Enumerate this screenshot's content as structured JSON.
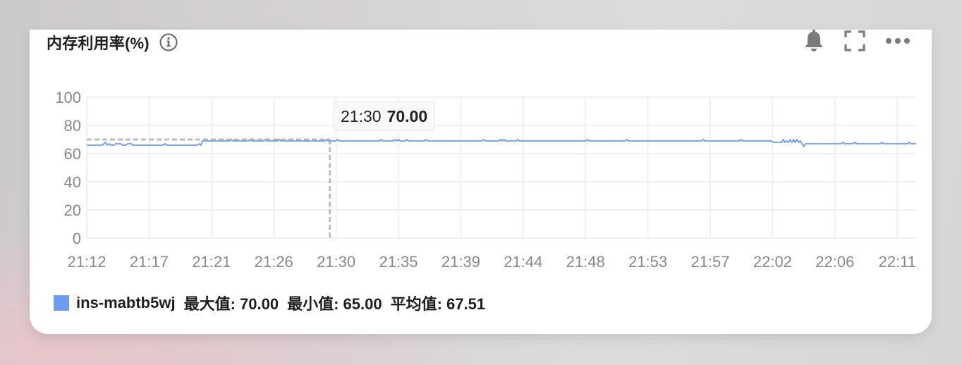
{
  "header": {
    "title": "内存利用率(%)",
    "info_icon": "info-icon",
    "tools": [
      "bell-icon",
      "fullscreen-icon",
      "more-icon"
    ]
  },
  "tooltip": {
    "time": "21:30",
    "value": "70.00"
  },
  "legend": {
    "series_name": "ins-mabtb5wj",
    "max_label": "最大值: 70.00",
    "min_label": "最小值: 65.00",
    "avg_label": "平均值: 67.51"
  },
  "colors": {
    "series": "#6c9cf2",
    "grid": "#ececec",
    "axis_text": "#888888",
    "crosshair": "#bdbdbd"
  },
  "chart_data": {
    "type": "line",
    "title": "内存利用率(%)",
    "xlabel": "",
    "ylabel": "",
    "ylim": [
      0,
      100
    ],
    "yticks": [
      0,
      20,
      40,
      60,
      80,
      100
    ],
    "x_tick_labels": [
      "21:12",
      "21:17",
      "21:21",
      "21:26",
      "21:30",
      "21:35",
      "21:39",
      "21:44",
      "21:48",
      "21:53",
      "21:57",
      "22:02",
      "22:06",
      "22:11"
    ],
    "grid": true,
    "legend_position": "bottom-left",
    "series": [
      {
        "name": "ins-mabtb5wj",
        "values": [
          66,
          66,
          66,
          66,
          66,
          66,
          66,
          66,
          66,
          66,
          67,
          68,
          66,
          67,
          66,
          66,
          66,
          67,
          67,
          67,
          67,
          66,
          66,
          66,
          67,
          67,
          67,
          66,
          66,
          66,
          66,
          66,
          66,
          66,
          66,
          66,
          66,
          66,
          66,
          66,
          66,
          66,
          66,
          66,
          66,
          66,
          67,
          66,
          66,
          66,
          66,
          66,
          66,
          66,
          66,
          66,
          66,
          66,
          66,
          66,
          66,
          66,
          66,
          66,
          66,
          66,
          67,
          66,
          69,
          69,
          69,
          69,
          69,
          69,
          69,
          69,
          69,
          69,
          69,
          69,
          69,
          69,
          69,
          69,
          69,
          70,
          69,
          69,
          69,
          69,
          69,
          69,
          69,
          69,
          69,
          69,
          70,
          69,
          69,
          69,
          69,
          69,
          69,
          69,
          69,
          70,
          69,
          69,
          69,
          69,
          69,
          69,
          69,
          70,
          69,
          69,
          69,
          69,
          69,
          69,
          69,
          69,
          69,
          69,
          69,
          69,
          69,
          69,
          69,
          69,
          69,
          69,
          69,
          69,
          69,
          69,
          69,
          69,
          69,
          69,
          69,
          70,
          69,
          69,
          69,
          69,
          69,
          70,
          69,
          69,
          69,
          69,
          69,
          69,
          69,
          69,
          69,
          69,
          69,
          69,
          69,
          69,
          69,
          69,
          69,
          69,
          69,
          69,
          69,
          69,
          69,
          69,
          69,
          70,
          69,
          69,
          69,
          69,
          69,
          69,
          69,
          70,
          69,
          70,
          69,
          69,
          69,
          69,
          70,
          69,
          69,
          69,
          69,
          69,
          69,
          69,
          69,
          69,
          69,
          70,
          69,
          69,
          69,
          69,
          69,
          69,
          69,
          69,
          69,
          69,
          69,
          69,
          69,
          69,
          69,
          69,
          69,
          69,
          69,
          69,
          69,
          69,
          69,
          69,
          69,
          69,
          69,
          69,
          69,
          69,
          69,
          69,
          69,
          70,
          69,
          69,
          69,
          69,
          69,
          69,
          69,
          69,
          69,
          70,
          69,
          70,
          69,
          69,
          69,
          69,
          69,
          69,
          69,
          70,
          69,
          69,
          69,
          69,
          69,
          69,
          69,
          69,
          69,
          69,
          69,
          69,
          69,
          69,
          69,
          69,
          69,
          69,
          69,
          69,
          69,
          69,
          69,
          69,
          69,
          69,
          69,
          69,
          69,
          69,
          69,
          69,
          69,
          69,
          69,
          69,
          69,
          69,
          69,
          69,
          70,
          69,
          69,
          69,
          69,
          69,
          69,
          69,
          69,
          69,
          69,
          69,
          69,
          69,
          69,
          69,
          69,
          69,
          69,
          69,
          69,
          69,
          69,
          70,
          69,
          69,
          69,
          69,
          69,
          69,
          69,
          69,
          69,
          69,
          69,
          69,
          69,
          69,
          69,
          69,
          69,
          69,
          69,
          69,
          69,
          69,
          69,
          69,
          69,
          69,
          69,
          69,
          69,
          69,
          69,
          69,
          69,
          69,
          69,
          69,
          69,
          69,
          69,
          69,
          69,
          69,
          69,
          69,
          70,
          69,
          69,
          69,
          69,
          69,
          69,
          69,
          69,
          69,
          69,
          69,
          69,
          69,
          69,
          69,
          69,
          69,
          69,
          69,
          69,
          69,
          70,
          69,
          69,
          69,
          69,
          69,
          69,
          69,
          69,
          69,
          69,
          69,
          69,
          69,
          69,
          69,
          69,
          69,
          69,
          68,
          68,
          68,
          68,
          68,
          68,
          70,
          68,
          69,
          68,
          70,
          68,
          70,
          68,
          70,
          68,
          69,
          67,
          65,
          67,
          67,
          67,
          67,
          67,
          67,
          67,
          67,
          67,
          67,
          67,
          67,
          67,
          67,
          67,
          67,
          67,
          67,
          67,
          67,
          67,
          67,
          68,
          67,
          67,
          67,
          67,
          67,
          67,
          68,
          67,
          67,
          67,
          67,
          67,
          67,
          67,
          67,
          67,
          67,
          67,
          67,
          67,
          67,
          67,
          68,
          67,
          67,
          67,
          67,
          67,
          67,
          67,
          67,
          67,
          67,
          67,
          67,
          67,
          67,
          67,
          68,
          67,
          67,
          67,
          67
        ]
      }
    ]
  }
}
